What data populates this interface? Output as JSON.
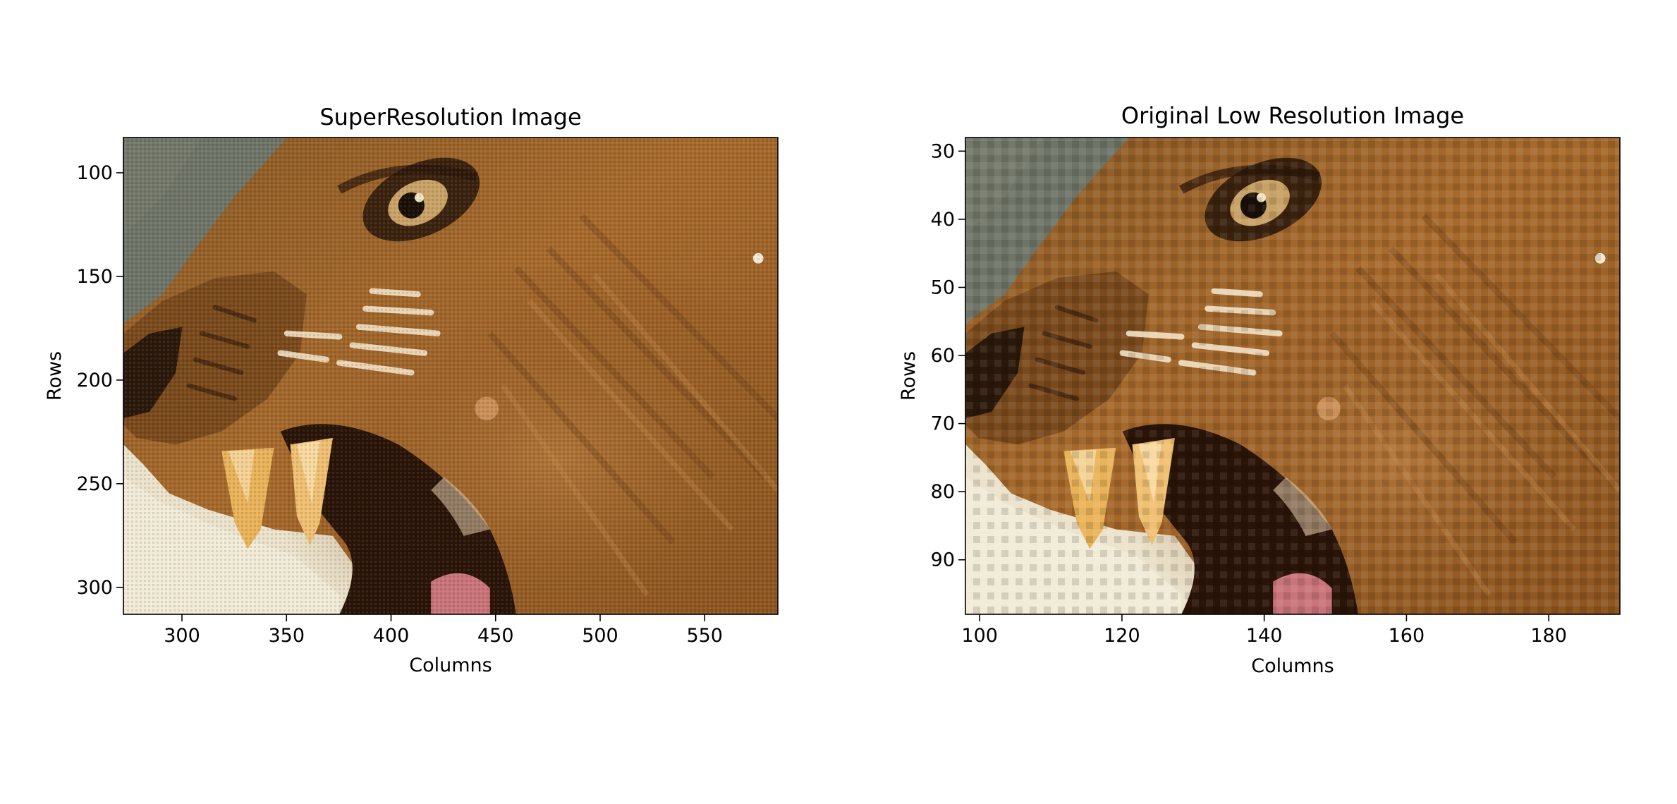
{
  "chart_data": [
    {
      "type": "image",
      "title": "SuperResolution Image",
      "xlabel": "Columns",
      "ylabel": "Rows",
      "xlim": [
        272,
        585
      ],
      "ylim": [
        313,
        83
      ],
      "y_inverted": true,
      "xticks": [
        300,
        350,
        400,
        450,
        500,
        550
      ],
      "yticks": [
        100,
        150,
        200,
        250,
        300
      ],
      "grid": false,
      "legend": "none",
      "image_content": "close-up of a snarling lioness face, mouth open with fangs"
    },
    {
      "type": "image",
      "title": "Original Low Resolution Image",
      "xlabel": "Columns",
      "ylabel": "Rows",
      "xlim": [
        98,
        190
      ],
      "ylim": [
        98,
        28
      ],
      "y_inverted": true,
      "xticks": [
        100,
        120,
        140,
        160,
        180
      ],
      "yticks": [
        30,
        40,
        50,
        60,
        70,
        80,
        90
      ],
      "grid": false,
      "legend": "none",
      "image_content": "pixelated close-up of a snarling lioness face, mouth open with fangs"
    }
  ],
  "colors": {
    "sky": "#6f7468",
    "fur_light": "#b07a3a",
    "fur_mid": "#9a5f25",
    "fur_dark": "#6a3a12",
    "mouth": "#2a1408",
    "fang": "#e9b35a",
    "background_light": "#ece3cc",
    "tongue": "#c9747a"
  }
}
